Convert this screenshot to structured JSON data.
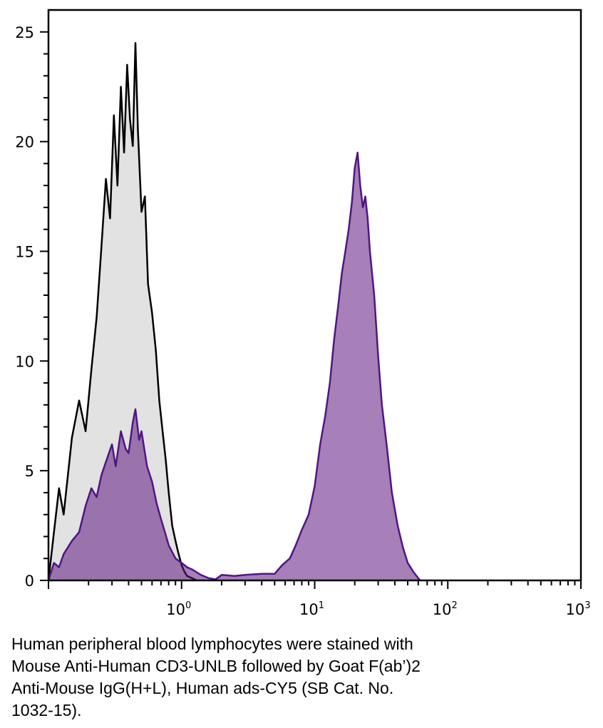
{
  "chart_data": {
    "type": "area",
    "title": "",
    "xlabel": "",
    "ylabel": "",
    "x_scale": "log",
    "xlim": [
      0.1,
      1000
    ],
    "ylim": [
      0,
      26
    ],
    "grid": false,
    "legend": "none",
    "y_ticks": [
      "0",
      "5",
      "10",
      "15",
      "20",
      "25"
    ],
    "x_ticks": [
      {
        "base": "10",
        "exp": "0",
        "value": 1
      },
      {
        "base": "10",
        "exp": "1",
        "value": 10
      },
      {
        "base": "10",
        "exp": "2",
        "value": 100
      },
      {
        "base": "10",
        "exp": "3",
        "value": 1000
      }
    ],
    "series": [
      {
        "fill": "#e2e2e2",
        "stroke": "#000000",
        "points": [
          [
            0.1,
            0
          ],
          [
            0.11,
            2.2
          ],
          [
            0.12,
            4.2
          ],
          [
            0.13,
            3.0
          ],
          [
            0.15,
            6.5
          ],
          [
            0.17,
            8.2
          ],
          [
            0.19,
            6.8
          ],
          [
            0.21,
            9.6
          ],
          [
            0.23,
            12.0
          ],
          [
            0.25,
            15.2
          ],
          [
            0.27,
            18.3
          ],
          [
            0.29,
            16.5
          ],
          [
            0.31,
            21.2
          ],
          [
            0.33,
            18.0
          ],
          [
            0.35,
            22.5
          ],
          [
            0.37,
            19.5
          ],
          [
            0.39,
            23.5
          ],
          [
            0.41,
            21.0
          ],
          [
            0.43,
            19.8
          ],
          [
            0.45,
            24.5
          ],
          [
            0.47,
            20.5
          ],
          [
            0.5,
            16.8
          ],
          [
            0.53,
            17.5
          ],
          [
            0.56,
            13.5
          ],
          [
            0.6,
            12.2
          ],
          [
            0.64,
            10.5
          ],
          [
            0.68,
            8.2
          ],
          [
            0.72,
            6.8
          ],
          [
            0.76,
            5.5
          ],
          [
            0.8,
            4.0
          ],
          [
            0.85,
            2.5
          ],
          [
            0.9,
            1.8
          ],
          [
            0.95,
            1.2
          ],
          [
            1.0,
            0.7
          ],
          [
            1.05,
            0.4
          ],
          [
            1.1,
            0.2
          ],
          [
            1.2,
            0.1
          ],
          [
            1.3,
            0
          ]
        ]
      },
      {
        "fill": "#5e1680",
        "stroke": "#4f1780",
        "points": [
          [
            0.1,
            0
          ],
          [
            0.11,
            0.8
          ],
          [
            0.12,
            0.6
          ],
          [
            0.13,
            1.2
          ],
          [
            0.15,
            1.8
          ],
          [
            0.17,
            2.2
          ],
          [
            0.19,
            3.4
          ],
          [
            0.21,
            4.2
          ],
          [
            0.23,
            3.8
          ],
          [
            0.25,
            4.8
          ],
          [
            0.27,
            5.4
          ],
          [
            0.3,
            6.2
          ],
          [
            0.32,
            5.2
          ],
          [
            0.35,
            6.8
          ],
          [
            0.38,
            6.0
          ],
          [
            0.4,
            5.8
          ],
          [
            0.43,
            7.2
          ],
          [
            0.45,
            7.8
          ],
          [
            0.48,
            6.4
          ],
          [
            0.5,
            6.8
          ],
          [
            0.55,
            5.2
          ],
          [
            0.6,
            4.5
          ],
          [
            0.65,
            3.5
          ],
          [
            0.7,
            2.8
          ],
          [
            0.75,
            2.2
          ],
          [
            0.8,
            1.6
          ],
          [
            0.9,
            1.0
          ],
          [
            1.0,
            0.8
          ],
          [
            1.1,
            0.6
          ],
          [
            1.2,
            0.5
          ],
          [
            1.4,
            0.25
          ],
          [
            1.6,
            0.1
          ],
          [
            1.8,
            0.05
          ],
          [
            2.0,
            0.25
          ],
          [
            2.5,
            0.2
          ],
          [
            3.0,
            0.25
          ],
          [
            4.0,
            0.3
          ],
          [
            5.0,
            0.3
          ],
          [
            5.7,
            0.7
          ],
          [
            6.5,
            1.0
          ],
          [
            7.2,
            1.6
          ],
          [
            8.0,
            2.3
          ],
          [
            9.0,
            3.0
          ],
          [
            10.0,
            4.3
          ],
          [
            11.0,
            6.2
          ],
          [
            12.0,
            7.5
          ],
          [
            13.0,
            9.0
          ],
          [
            14.0,
            11.0
          ],
          [
            15.0,
            12.5
          ],
          [
            16.0,
            14.0
          ],
          [
            17.0,
            15.0
          ],
          [
            18.0,
            16.0
          ],
          [
            19.0,
            17.2
          ],
          [
            20.0,
            18.8
          ],
          [
            21.0,
            19.5
          ],
          [
            22.0,
            18.0
          ],
          [
            23.0,
            17.0
          ],
          [
            24.0,
            17.5
          ],
          [
            25.0,
            16.5
          ],
          [
            26.0,
            15.0
          ],
          [
            28.0,
            13.0
          ],
          [
            30.0,
            10.2
          ],
          [
            32.0,
            8.0
          ],
          [
            35.0,
            6.0
          ],
          [
            38.0,
            4.0
          ],
          [
            42.0,
            2.5
          ],
          [
            46.0,
            1.5
          ],
          [
            50.0,
            0.8
          ],
          [
            55.0,
            0.4
          ],
          [
            60.0,
            0.1
          ],
          [
            62.0,
            0
          ]
        ]
      }
    ]
  },
  "caption": {
    "lines": [
      "Human peripheral blood lymphocytes were stained with",
      "Mouse Anti-Human CD3-UNLB followed by Goat F(ab’)2",
      "Anti-Mouse IgG(H+L), Human ads-CY5 (SB Cat. No.",
      "1032-15)."
    ]
  }
}
